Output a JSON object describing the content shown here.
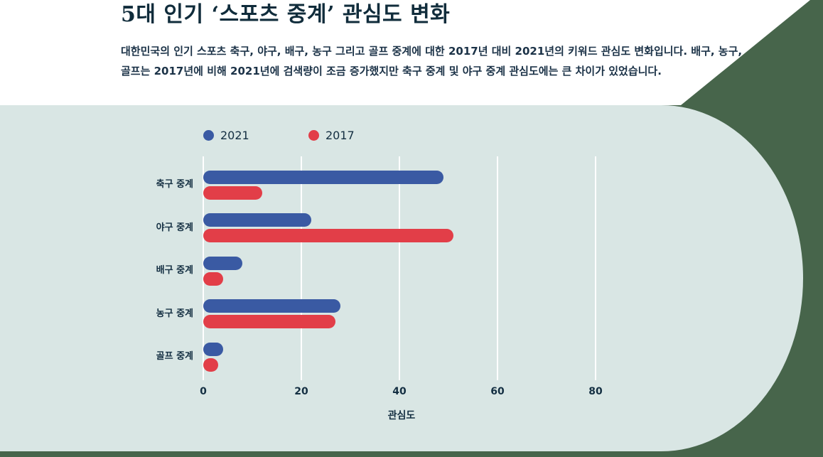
{
  "header": {
    "title": "5대 인기 ‘스포츠 중계’ 관심도 변화",
    "subtitle": "대한민국의 인기 스포츠 축구, 야구, 배구, 농구 그리고 골프 중계에 대한 2017년 대비 2021년의 키워드 관심도 변화입니다. 배구, 농구, 골프는 2017년에 비해 2021년에 검색량이 조금 증가했지만 축구 중계 및 야구 중계 관심도에는 큰 차이가 있었습니다."
  },
  "colors": {
    "background_green": "#47654B",
    "panel_teal": "#D9E6E4",
    "series_2021_blue": "#3A5AA3",
    "series_2017_red": "#E23E48",
    "text_navy": "#142F42",
    "gridline_white": "#FFFFFF"
  },
  "legend": {
    "items": [
      {
        "label": "2021",
        "color_key": "series_2021_blue"
      },
      {
        "label": "2017",
        "color_key": "series_2017_red"
      }
    ]
  },
  "chart_data": {
    "type": "bar",
    "orientation": "horizontal",
    "title": "5대 인기 ‘스포츠 중계’ 관심도 변화",
    "categories": [
      "축구 중계",
      "야구 중계",
      "배구 중계",
      "농구 중계",
      "골프 중계"
    ],
    "series": [
      {
        "name": "2021",
        "color_key": "series_2021_blue",
        "values": [
          49,
          22,
          8,
          28,
          4
        ]
      },
      {
        "name": "2017",
        "color_key": "series_2017_red",
        "values": [
          12,
          51,
          4,
          27,
          3
        ]
      }
    ],
    "xlabel": "관심도",
    "x_ticks": [
      0,
      20,
      40,
      60,
      80
    ],
    "xlim": [
      0,
      100
    ],
    "grid": "vertical-white-lines",
    "legend_position": "top-left"
  }
}
